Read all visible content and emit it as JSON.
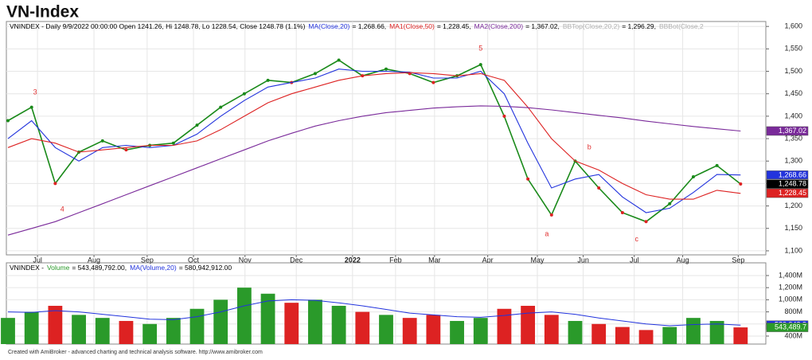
{
  "title": "VN-Index",
  "footer": "Created with AmiBroker - advanced charting and technical analysis software. http://www.amibroker.com",
  "chart_data": [
    {
      "type": "line",
      "legend": {
        "prefix": "VNINDEX - Daily 9/9/2022 00:00:00 Open 1241.26, Hi 1248.78, Lo 1228.54, Close 1248.78 (1.1%)",
        "items": [
          {
            "series": 1,
            "text": "= 1,268.66,"
          },
          {
            "series": 2,
            "text": "= 1,228.45,"
          },
          {
            "series": 3,
            "text": "= 1,367.02,"
          },
          {
            "label": "BBTop(Close,20,2)",
            "color": "#b0b0b0",
            "text": "= 1,296.29,"
          },
          {
            "label": "BBBot(Close,2",
            "color": "#b0b0b0"
          }
        ]
      },
      "x": [
        0,
        1,
        2,
        3,
        4,
        5,
        6,
        7,
        8,
        9,
        10,
        11,
        12,
        13,
        14,
        15,
        16,
        17,
        18,
        19,
        20,
        21,
        22,
        23,
        24,
        25,
        26,
        27,
        28,
        29,
        30,
        31
      ],
      "xlim": [
        0,
        32
      ],
      "xticks": [
        {
          "value": 1.25,
          "label": "Jul"
        },
        {
          "value": 3.64,
          "label": "Aug"
        },
        {
          "value": 5.89,
          "label": "Sep"
        },
        {
          "value": 7.85,
          "label": "Oct"
        },
        {
          "value": 10.03,
          "label": "Nov"
        },
        {
          "value": 12.2,
          "label": "Dec"
        },
        {
          "value": 14.58,
          "label": "2022"
        },
        {
          "value": 16.4,
          "label": "Feb"
        },
        {
          "value": 18.05,
          "label": "Mar"
        },
        {
          "value": 20.3,
          "label": "Apr"
        },
        {
          "value": 22.4,
          "label": "May"
        },
        {
          "value": 24.34,
          "label": "Jun"
        },
        {
          "value": 26.5,
          "label": "Jul"
        },
        {
          "value": 28.55,
          "label": "Aug"
        },
        {
          "value": 30.9,
          "label": "Sep"
        }
      ],
      "ylim": [
        1091,
        1611
      ],
      "yticks": [
        {
          "value": 1100,
          "label": "1,100"
        },
        {
          "value": 1150,
          "label": "1,150"
        },
        {
          "value": 1200,
          "label": "1,200"
        },
        {
          "value": 1250,
          "label": "1,250"
        },
        {
          "value": 1300,
          "label": "1,300"
        },
        {
          "value": 1350,
          "label": "1,350"
        },
        {
          "value": 1400,
          "label": "1,400"
        },
        {
          "value": 1450,
          "label": "1,450"
        },
        {
          "value": 1500,
          "label": "1,500"
        },
        {
          "value": 1550,
          "label": "1,550"
        },
        {
          "value": 1600,
          "label": "1,600"
        }
      ],
      "grid": true,
      "series": [
        {
          "name": "VNINDEX",
          "color": "#1a8a1a",
          "values": [
            1390,
            1420,
            1250,
            1320,
            1345,
            1325,
            1335,
            1340,
            1380,
            1420,
            1450,
            1480,
            1475,
            1495,
            1525,
            1490,
            1505,
            1495,
            1475,
            1490,
            1515,
            1400,
            1260,
            1180,
            1300,
            1240,
            1185,
            1165,
            1205,
            1265,
            1290,
            1249
          ]
        },
        {
          "name": "MA(Close,20)",
          "color": "#2233dd",
          "values": [
            1350,
            1390,
            1330,
            1300,
            1330,
            1335,
            1330,
            1335,
            1360,
            1400,
            1435,
            1465,
            1475,
            1485,
            1505,
            1500,
            1500,
            1498,
            1485,
            1485,
            1500,
            1450,
            1340,
            1240,
            1260,
            1270,
            1220,
            1185,
            1195,
            1230,
            1270,
            1269
          ]
        },
        {
          "name": "MA1(Close,50)",
          "color": "#dd2222",
          "values": [
            1330,
            1350,
            1340,
            1320,
            1325,
            1330,
            1335,
            1335,
            1345,
            1370,
            1400,
            1430,
            1450,
            1465,
            1480,
            1490,
            1495,
            1497,
            1495,
            1490,
            1495,
            1480,
            1420,
            1350,
            1300,
            1280,
            1250,
            1225,
            1215,
            1215,
            1235,
            1228
          ]
        },
        {
          "name": "MA2(Close,200)",
          "color": "#7a2a9a",
          "values": [
            1135,
            1150,
            1165,
            1185,
            1205,
            1225,
            1245,
            1265,
            1285,
            1305,
            1325,
            1345,
            1362,
            1378,
            1390,
            1400,
            1408,
            1413,
            1418,
            1421,
            1423,
            1422,
            1419,
            1414,
            1408,
            1402,
            1396,
            1389,
            1383,
            1377,
            1372,
            1367
          ]
        }
      ],
      "annotations": [
        {
          "text": "3",
          "x": 1.15,
          "y": 1453
        },
        {
          "text": "4",
          "x": 2.3,
          "y": 1192
        },
        {
          "text": "5",
          "x": 20,
          "y": 1550
        },
        {
          "text": "a",
          "x": 22.8,
          "y": 1137
        },
        {
          "text": "b",
          "x": 24.6,
          "y": 1330
        },
        {
          "text": "c",
          "x": 26.6,
          "y": 1125
        }
      ],
      "annotation_color": "#e03030",
      "badges": [
        {
          "value": 1367.02,
          "label": "1,367.02",
          "color": "#7a2a9a",
          "text_color": "#fff"
        },
        {
          "value": 1268.66,
          "label": "1,268.66",
          "color": "#2233dd",
          "text_color": "#fff"
        },
        {
          "value": 1250.14,
          "label": "1,250.14",
          "color": "#fff",
          "text_color": "#000"
        },
        {
          "value": 1248.78,
          "label": "1,248.78",
          "color": "#000",
          "text_color": "#fff"
        },
        {
          "value": 1228.45,
          "label": "1,228.45",
          "color": "#dd2222",
          "text_color": "#fff"
        }
      ]
    },
    {
      "type": "bar",
      "legend": {
        "prefix": "VNINDEX -",
        "items": [
          {
            "series": 0,
            "text": "= 543,489,792.00,"
          },
          {
            "series": 1,
            "text": "= 580,942,912.00"
          }
        ]
      },
      "x": [
        0,
        1,
        2,
        3,
        4,
        5,
        6,
        7,
        8,
        9,
        10,
        11,
        12,
        13,
        14,
        15,
        16,
        17,
        18,
        19,
        20,
        21,
        22,
        23,
        24,
        25,
        26,
        27,
        28,
        29,
        30,
        31
      ],
      "xlim": [
        0,
        32
      ],
      "ylim": [
        268000000,
        1610000000
      ],
      "yticks": [
        {
          "value": 400000000,
          "label": "400M"
        },
        {
          "value": 600000000,
          "label": "600M"
        },
        {
          "value": 800000000,
          "label": "800M"
        },
        {
          "value": 1000000000,
          "label": "1,000M"
        },
        {
          "value": 1200000000,
          "label": "1,200M"
        },
        {
          "value": 1400000000,
          "label": "1,400M"
        }
      ],
      "grid": true,
      "up_color": "#2a9a2a",
      "down_color": "#dd2222",
      "series": [
        {
          "name": "Volume",
          "color": "#2a9a2a",
          "values": [
            700000000,
            800000000,
            900000000,
            750000000,
            700000000,
            650000000,
            600000000,
            700000000,
            850000000,
            1000000000,
            1200000000,
            1100000000,
            950000000,
            1000000000,
            900000000,
            800000000,
            750000000,
            700000000,
            750000000,
            650000000,
            700000000,
            850000000,
            900000000,
            750000000,
            650000000,
            600000000,
            550000000,
            500000000,
            550000000,
            700000000,
            650000000,
            543489792
          ]
        },
        {
          "name": "MA(Volume,20)",
          "color": "#2233dd",
          "values": [
            800000000,
            790000000,
            820000000,
            800000000,
            760000000,
            720000000,
            680000000,
            670000000,
            720000000,
            800000000,
            900000000,
            980000000,
            1000000000,
            990000000,
            950000000,
            900000000,
            840000000,
            780000000,
            750000000,
            720000000,
            710000000,
            740000000,
            780000000,
            800000000,
            760000000,
            700000000,
            650000000,
            600000000,
            570000000,
            590000000,
            600000000,
            580942912
          ]
        }
      ],
      "badges": [
        {
          "value": 580942912,
          "label": "580,942,9",
          "color": "#2233dd",
          "text_color": "#fff"
        },
        {
          "value": 543489792,
          "label": "543,489.7",
          "color": "#2a9a2a",
          "text_color": "#fff"
        }
      ]
    }
  ]
}
